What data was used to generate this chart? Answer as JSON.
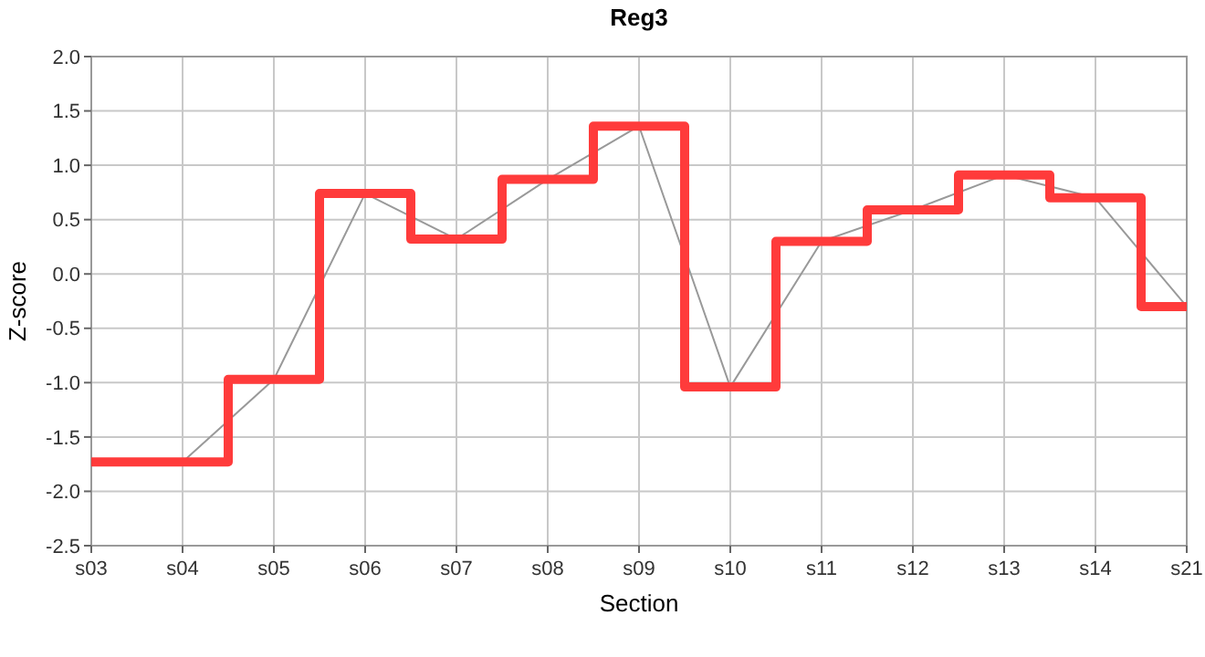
{
  "chart_data": {
    "type": "step",
    "title": "Reg3",
    "xlabel": "Section",
    "ylabel": "Z-score",
    "categories": [
      "s03",
      "s04",
      "s05",
      "s06",
      "s07",
      "s08",
      "s09",
      "s10",
      "s11",
      "s12",
      "s13",
      "s14",
      "s21"
    ],
    "series": [
      {
        "type": "line",
        "color": "#999999",
        "values": [
          -1.73,
          -1.73,
          -0.97,
          0.74,
          0.32,
          0.87,
          1.36,
          -1.04,
          0.3,
          0.59,
          0.91,
          0.7,
          -0.3
        ]
      },
      {
        "color": "#ff3b3b",
        "values": [
          -1.73,
          -1.73,
          -0.97,
          0.74,
          0.32,
          0.87,
          1.36,
          -1.04,
          0.3,
          0.59,
          0.91,
          0.7,
          -0.3
        ]
      }
    ],
    "ylim": [
      -2.5,
      2.0
    ],
    "yticks": [
      {
        "value": -2.5,
        "label": "-2.5"
      },
      {
        "value": -2,
        "label": "-2.0"
      },
      {
        "value": -1.5,
        "label": "-1.5"
      },
      {
        "value": -1,
        "label": "-1.0"
      },
      {
        "value": -0.5,
        "label": "-0.5"
      },
      {
        "value": 0,
        "label": "0.0"
      },
      {
        "value": 0.5,
        "label": "0.5"
      },
      {
        "value": 1,
        "label": "1.0"
      },
      {
        "value": 1.5,
        "label": "1.5"
      },
      {
        "value": 2,
        "label": "2.0"
      }
    ],
    "grid": true,
    "marker": "none",
    "line_style": "solid"
  }
}
